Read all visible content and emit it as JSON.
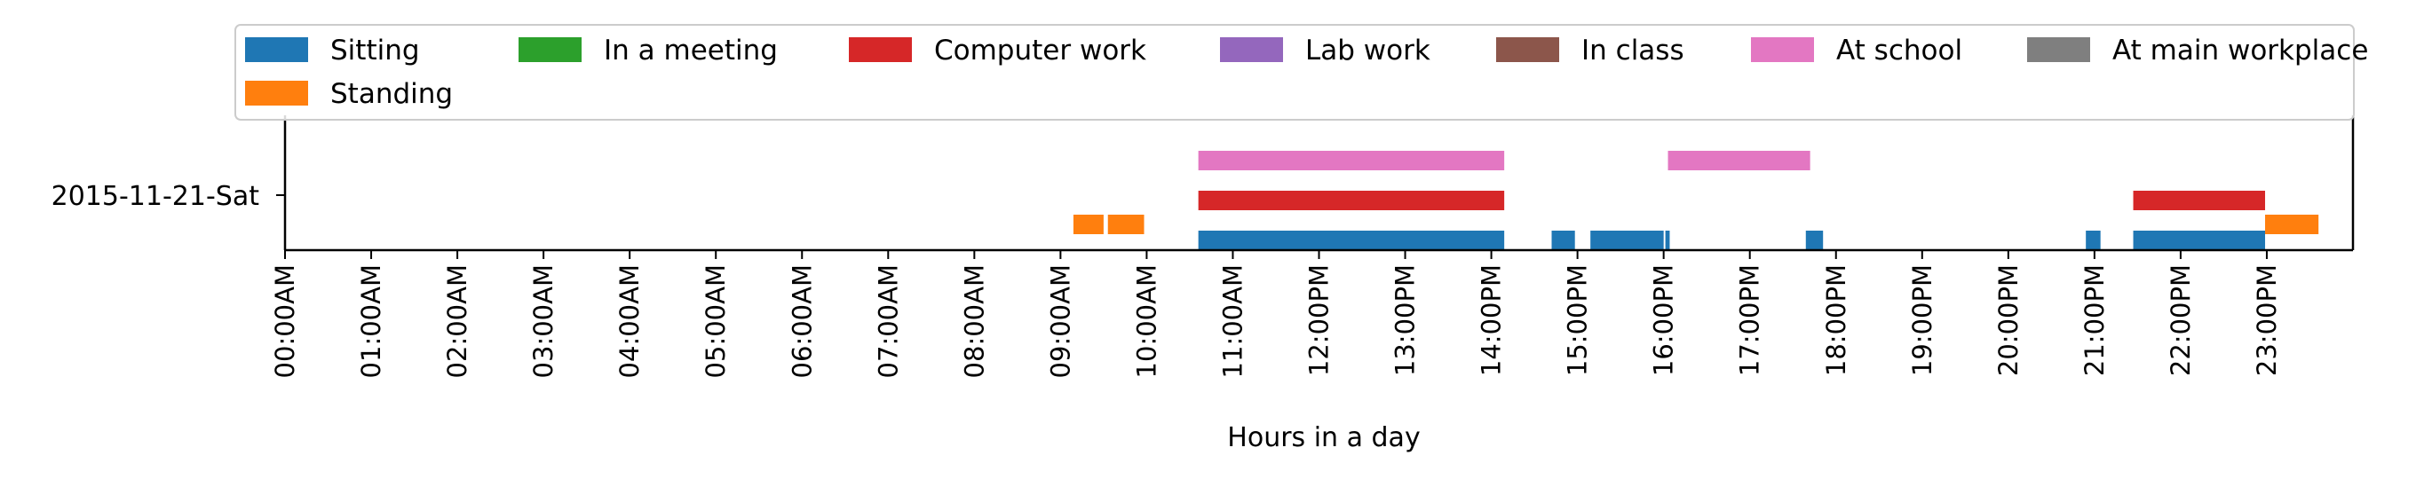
{
  "chart_data": {
    "type": "timeline",
    "xlabel": "Hours in a day",
    "xlim": [
      0,
      24
    ],
    "x_ticks": [
      "00:00AM",
      "01:00AM",
      "02:00AM",
      "03:00AM",
      "04:00AM",
      "05:00AM",
      "06:00AM",
      "07:00AM",
      "08:00AM",
      "09:00AM",
      "10:00AM",
      "11:00AM",
      "12:00PM",
      "13:00PM",
      "14:00PM",
      "15:00PM",
      "16:00PM",
      "17:00PM",
      "18:00PM",
      "19:00PM",
      "20:00PM",
      "21:00PM",
      "22:00PM",
      "23:00PM"
    ],
    "y_category": "2015-11-21-Sat",
    "legend_position": "top",
    "legend": [
      {
        "label": "Sitting",
        "color": "#1f77b4"
      },
      {
        "label": "In a meeting",
        "color": "#2ca02c"
      },
      {
        "label": "Computer work",
        "color": "#d62728"
      },
      {
        "label": "Lab work",
        "color": "#9467bd"
      },
      {
        "label": "In class",
        "color": "#8c564b"
      },
      {
        "label": "At school",
        "color": "#e377c2"
      },
      {
        "label": "At main workplace",
        "color": "#7f7f7f"
      },
      {
        "label": "Standing",
        "color": "#ff7f0e"
      }
    ],
    "series": [
      {
        "label": "Sitting",
        "lane": 0,
        "intervals": [
          [
            10.6,
            14.15
          ],
          [
            14.7,
            14.97
          ],
          [
            15.15,
            16.0
          ],
          [
            16.02,
            16.07
          ],
          [
            17.65,
            17.85
          ],
          [
            20.9,
            21.07
          ],
          [
            21.45,
            22.98
          ]
        ]
      },
      {
        "label": "Standing",
        "lane": 0.4,
        "intervals": [
          [
            9.15,
            9.5
          ],
          [
            9.55,
            9.97
          ],
          [
            22.98,
            23.6
          ]
        ]
      },
      {
        "label": "Computer work",
        "lane": 1,
        "intervals": [
          [
            10.6,
            14.15
          ],
          [
            21.45,
            22.98
          ]
        ]
      },
      {
        "label": "At school",
        "lane": 2,
        "intervals": [
          [
            10.6,
            14.15
          ],
          [
            16.05,
            17.7
          ]
        ]
      }
    ]
  }
}
